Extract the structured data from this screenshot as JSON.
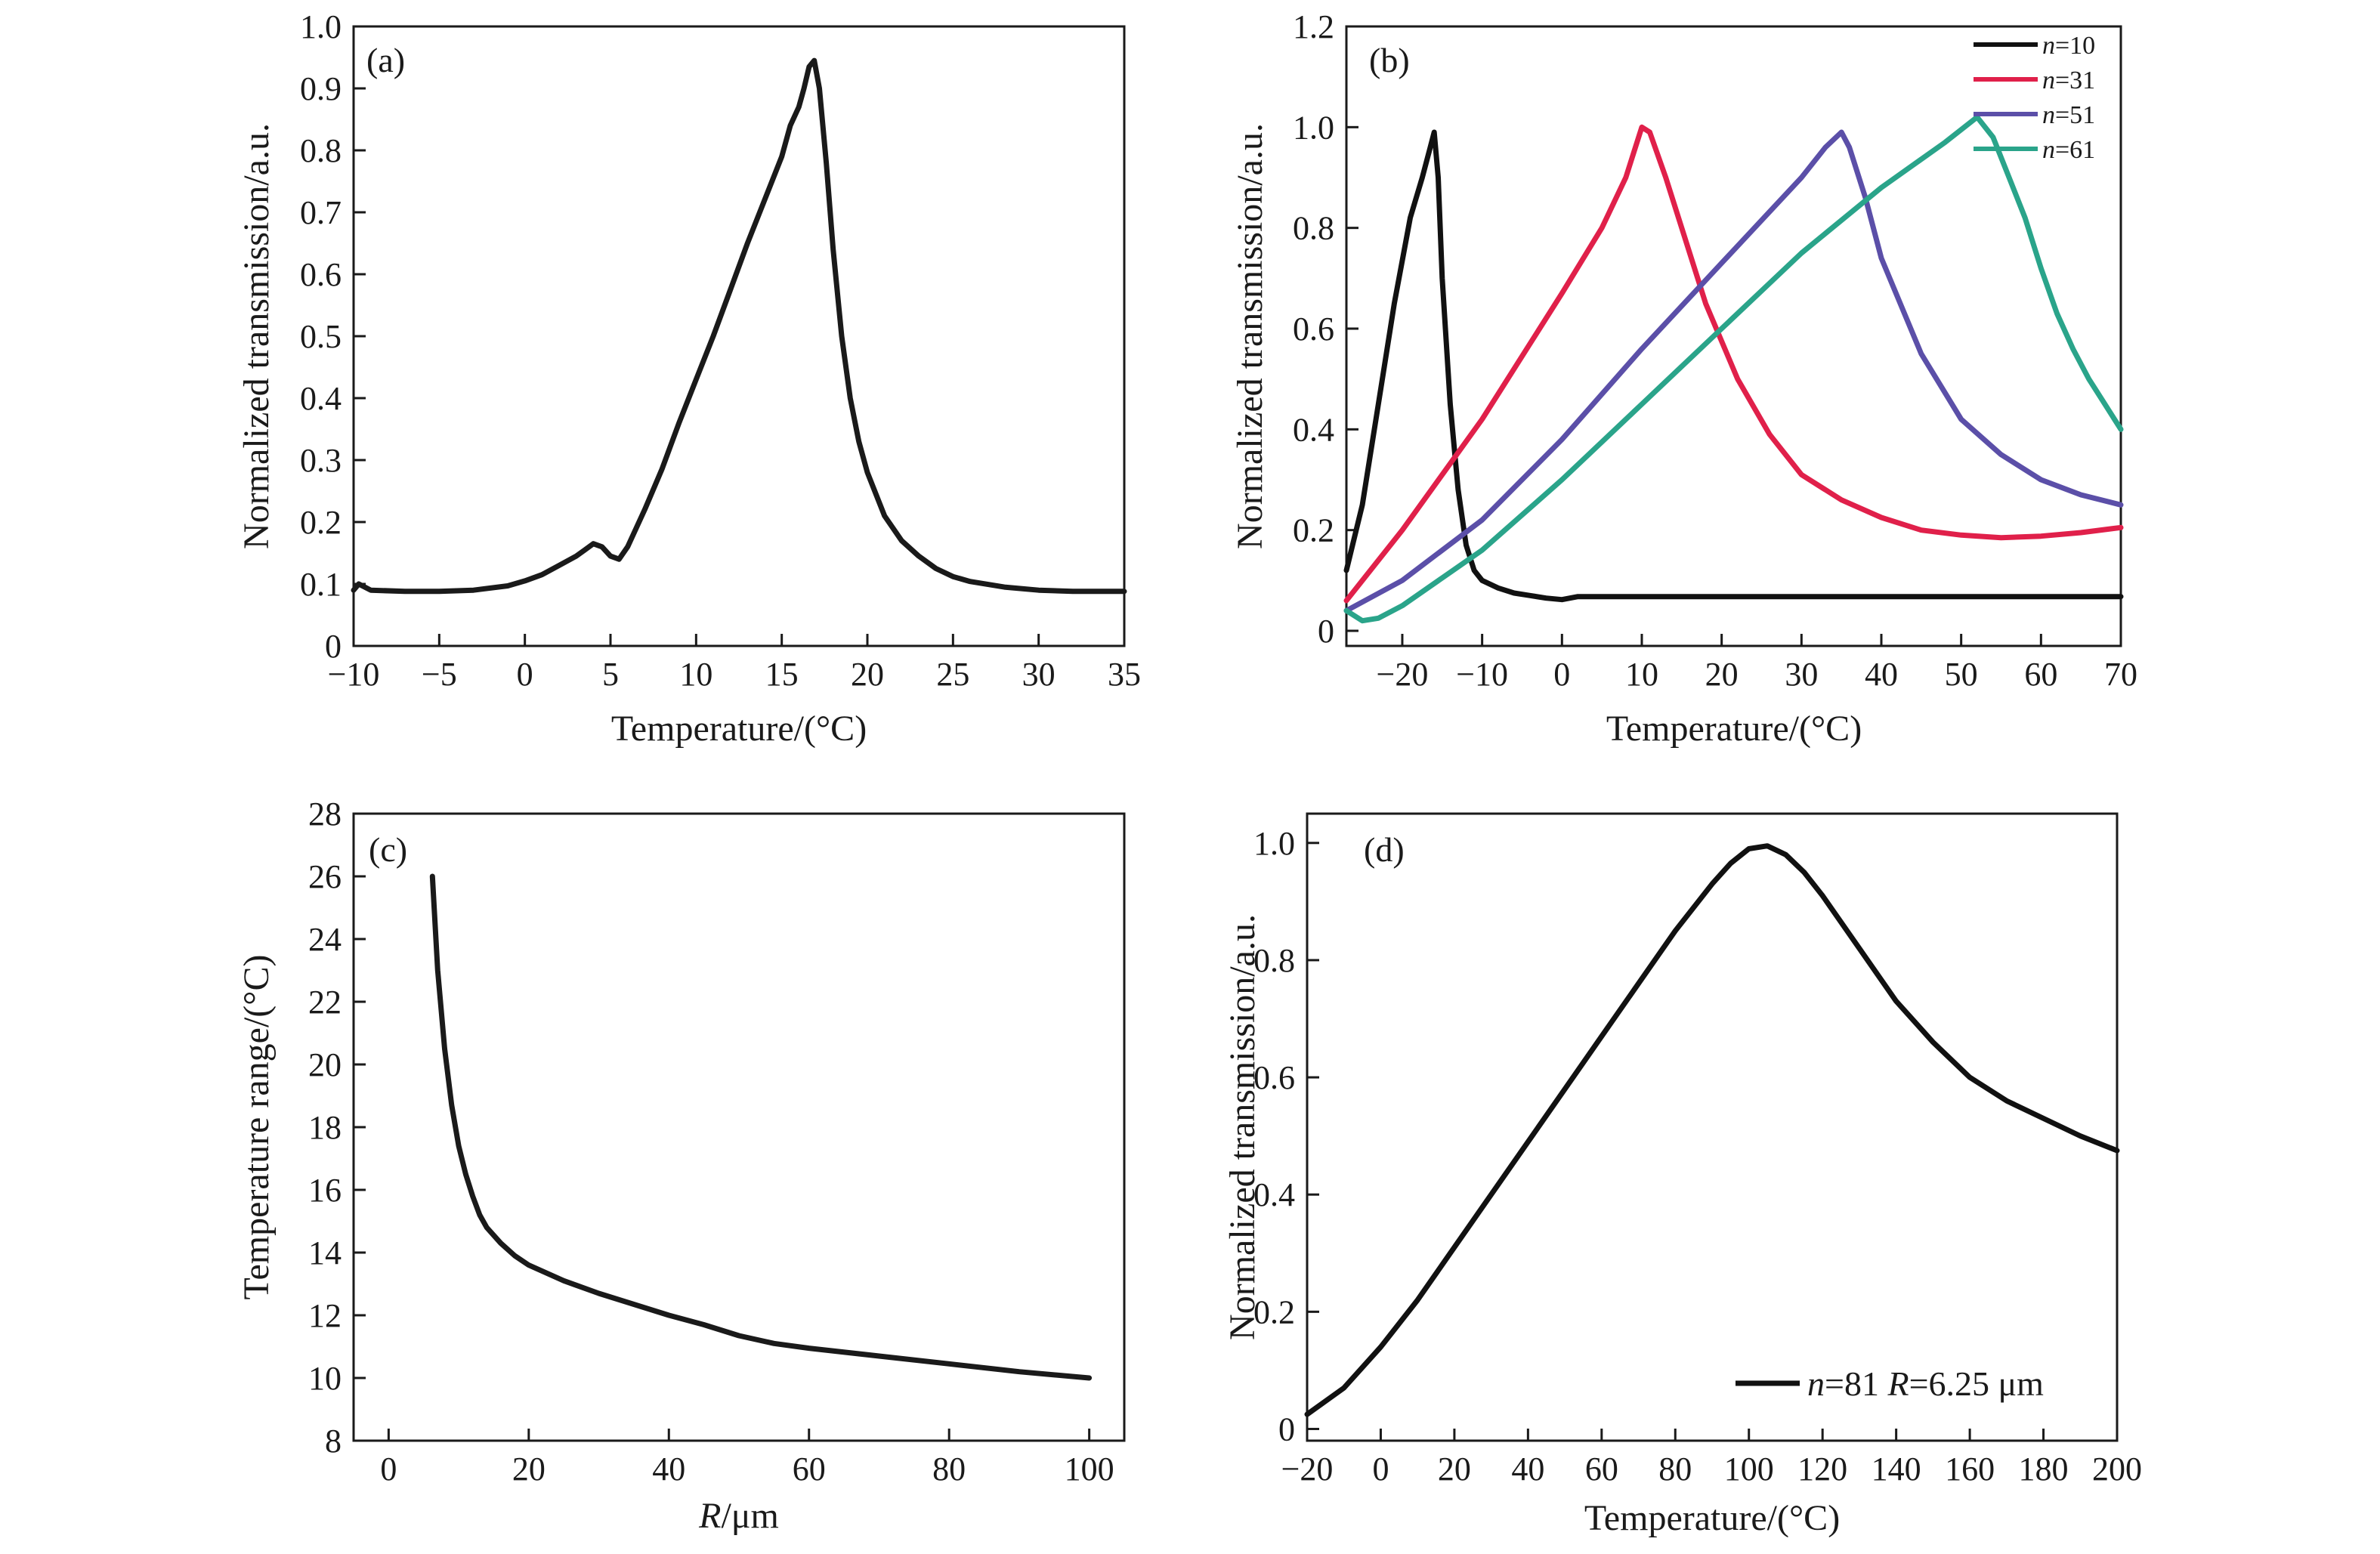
{
  "chart_data": [
    {
      "type": "line",
      "panel_label": "(a)",
      "xlabel": "Temperature/(°C)",
      "ylabel": "Normalized transmission/a.u.",
      "xlim": [
        -10,
        35
      ],
      "ylim": [
        0,
        1.0
      ],
      "xticks": [
        -10,
        -5,
        0,
        5,
        10,
        15,
        20,
        25,
        30,
        35
      ],
      "yticks": [
        0,
        0.1,
        0.2,
        0.3,
        0.4,
        0.5,
        0.6,
        0.7,
        0.8,
        0.9,
        1.0
      ],
      "xtick_labels": [
        "−10",
        "−5",
        "0",
        "5",
        "10",
        "15",
        "20",
        "25",
        "30",
        "35"
      ],
      "ytick_labels": [
        "0",
        "0.1",
        "0.2",
        "0.3",
        "0.4",
        "0.5",
        "0.6",
        "0.7",
        "0.8",
        "0.9",
        "1.0"
      ],
      "series": [
        {
          "color": "#1a1a1a",
          "x": [
            -10,
            -9.7,
            -9,
            -7,
            -5,
            -3,
            -1,
            0,
            1,
            2,
            3,
            3.5,
            4,
            4.5,
            5,
            5.5,
            6,
            7,
            8,
            9,
            10,
            11,
            12,
            13,
            14,
            15,
            15.5,
            16,
            16.3,
            16.6,
            16.9,
            17.2,
            17.6,
            18,
            18.5,
            19,
            19.5,
            20,
            21,
            22,
            23,
            24,
            25,
            26,
            28,
            30,
            32,
            35
          ],
          "y": [
            0.09,
            0.1,
            0.09,
            0.088,
            0.088,
            0.09,
            0.097,
            0.105,
            0.115,
            0.13,
            0.145,
            0.155,
            0.165,
            0.16,
            0.145,
            0.14,
            0.16,
            0.22,
            0.285,
            0.36,
            0.43,
            0.5,
            0.575,
            0.65,
            0.72,
            0.79,
            0.84,
            0.87,
            0.9,
            0.935,
            0.945,
            0.9,
            0.78,
            0.64,
            0.5,
            0.4,
            0.33,
            0.28,
            0.21,
            0.17,
            0.145,
            0.125,
            0.112,
            0.104,
            0.095,
            0.09,
            0.088,
            0.088
          ]
        }
      ]
    },
    {
      "type": "line",
      "panel_label": "(b)",
      "xlabel": "Temperature/(°C)",
      "ylabel": "Normalized transmission/a.u.",
      "xlim": [
        -27,
        70
      ],
      "ylim": [
        -0.03,
        1.2
      ],
      "xticks": [
        -20,
        -10,
        0,
        10,
        20,
        30,
        40,
        50,
        60,
        70
      ],
      "yticks": [
        0,
        0.2,
        0.4,
        0.6,
        0.8,
        1.0,
        1.2
      ],
      "xtick_labels": [
        "−20",
        "−10",
        "0",
        "10",
        "20",
        "30",
        "40",
        "50",
        "60",
        "70"
      ],
      "ytick_labels": [
        "0",
        "0.2",
        "0.4",
        "0.6",
        "0.8",
        "1.0",
        "1.2"
      ],
      "legend": {
        "position": "top-right"
      },
      "series": [
        {
          "name": "n=10",
          "name_italic": "n",
          "name_rest": "=10",
          "color": "#111111",
          "x": [
            -27,
            -25,
            -23,
            -21,
            -19,
            -17.5,
            -16.5,
            -16,
            -15.5,
            -15,
            -14,
            -13,
            -12,
            -11,
            -10,
            -8,
            -6,
            -4,
            -2,
            0,
            2,
            10,
            30,
            50,
            70
          ],
          "y": [
            0.12,
            0.25,
            0.45,
            0.65,
            0.82,
            0.9,
            0.96,
            0.99,
            0.9,
            0.7,
            0.45,
            0.28,
            0.17,
            0.12,
            0.1,
            0.085,
            0.075,
            0.07,
            0.065,
            0.062,
            0.068,
            0.068,
            0.068,
            0.068,
            0.068
          ]
        },
        {
          "name": "n=31",
          "name_italic": "n",
          "name_rest": "=31",
          "color": "#e0204a",
          "x": [
            -27,
            -20,
            -10,
            0,
            5,
            8,
            10,
            11,
            13,
            15,
            18,
            22,
            26,
            30,
            35,
            40,
            45,
            50,
            55,
            60,
            65,
            70
          ],
          "y": [
            0.06,
            0.2,
            0.42,
            0.67,
            0.8,
            0.9,
            1.0,
            0.99,
            0.9,
            0.8,
            0.65,
            0.5,
            0.39,
            0.31,
            0.26,
            0.225,
            0.2,
            0.19,
            0.185,
            0.188,
            0.195,
            0.205
          ]
        },
        {
          "name": "n=51",
          "name_italic": "n",
          "name_rest": "=51",
          "color": "#5b4fa8",
          "x": [
            -27,
            -20,
            -10,
            0,
            10,
            20,
            30,
            33,
            35,
            36,
            38,
            40,
            45,
            50,
            55,
            60,
            65,
            70
          ],
          "y": [
            0.04,
            0.1,
            0.22,
            0.38,
            0.56,
            0.73,
            0.9,
            0.96,
            0.99,
            0.96,
            0.86,
            0.74,
            0.55,
            0.42,
            0.35,
            0.3,
            0.27,
            0.25
          ]
        },
        {
          "name": "n=61",
          "name_italic": "n",
          "name_rest": "=61",
          "color": "#2aa48a",
          "x": [
            -27,
            -25,
            -23,
            -20,
            -10,
            0,
            10,
            20,
            30,
            40,
            48,
            52,
            54,
            56,
            58,
            60,
            62,
            64,
            66,
            68,
            70
          ],
          "y": [
            0.04,
            0.02,
            0.025,
            0.05,
            0.16,
            0.3,
            0.45,
            0.6,
            0.75,
            0.88,
            0.97,
            1.02,
            0.98,
            0.9,
            0.82,
            0.72,
            0.63,
            0.56,
            0.5,
            0.45,
            0.4
          ]
        }
      ]
    },
    {
      "type": "line",
      "panel_label": "(c)",
      "xlabel_italic": "R",
      "xlabel_rest": "/μm",
      "ylabel": "Temperature range/(°C)",
      "xlim": [
        -5,
        105
      ],
      "ylim": [
        8,
        28
      ],
      "xticks": [
        0,
        20,
        40,
        60,
        80,
        100
      ],
      "yticks": [
        8,
        10,
        12,
        14,
        16,
        18,
        20,
        22,
        24,
        26,
        28
      ],
      "xtick_labels": [
        "0",
        "20",
        "40",
        "60",
        "80",
        "100"
      ],
      "ytick_labels": [
        "8",
        "10",
        "12",
        "14",
        "16",
        "18",
        "20",
        "22",
        "24",
        "26",
        "28"
      ],
      "series": [
        {
          "color": "#1a1a1a",
          "x": [
            6.25,
            7,
            8,
            9,
            10,
            11,
            12,
            13,
            14,
            16,
            18,
            20,
            25,
            30,
            35,
            40,
            45,
            50,
            55,
            60,
            70,
            80,
            90,
            100
          ],
          "y": [
            26,
            23,
            20.5,
            18.7,
            17.4,
            16.5,
            15.8,
            15.2,
            14.8,
            14.3,
            13.9,
            13.6,
            13.1,
            12.7,
            12.35,
            12.0,
            11.7,
            11.35,
            11.1,
            10.95,
            10.7,
            10.45,
            10.2,
            10.0
          ]
        }
      ]
    },
    {
      "type": "line",
      "panel_label": "(d)",
      "xlabel": "Temperature/(°C)",
      "ylabel": "Normalized transmission/a.u.",
      "xlim": [
        -20,
        200
      ],
      "ylim": [
        -0.02,
        1.05
      ],
      "xticks": [
        -20,
        0,
        20,
        40,
        60,
        80,
        100,
        120,
        140,
        160,
        180,
        200
      ],
      "yticks": [
        0,
        0.2,
        0.4,
        0.6,
        0.8,
        1.0
      ],
      "xtick_labels": [
        "−20",
        "0",
        "20",
        "40",
        "60",
        "80",
        "100",
        "120",
        "140",
        "160",
        "180",
        "200"
      ],
      "ytick_labels": [
        "0",
        "0.2",
        "0.4",
        "0.6",
        "0.8",
        "1.0"
      ],
      "legend": {
        "position": "bottom-right"
      },
      "series": [
        {
          "name": "n=81 R=6.25 μm",
          "name_parts": [
            "n",
            "=81 ",
            "R",
            "=6.25 μm"
          ],
          "color": "#111111",
          "x": [
            -20,
            -10,
            0,
            10,
            20,
            30,
            40,
            50,
            60,
            70,
            80,
            90,
            95,
            100,
            105,
            110,
            115,
            120,
            130,
            140,
            150,
            160,
            170,
            180,
            190,
            200
          ],
          "y": [
            0.025,
            0.07,
            0.14,
            0.22,
            0.31,
            0.4,
            0.49,
            0.58,
            0.67,
            0.76,
            0.85,
            0.93,
            0.965,
            0.99,
            0.995,
            0.98,
            0.95,
            0.91,
            0.82,
            0.73,
            0.66,
            0.6,
            0.56,
            0.53,
            0.5,
            0.475
          ]
        }
      ]
    }
  ]
}
